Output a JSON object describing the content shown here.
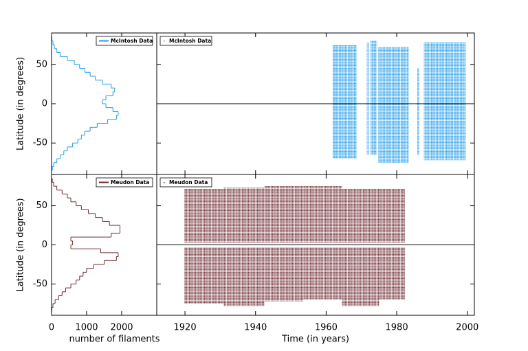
{
  "chart_data": [
    {
      "type": "histogram",
      "orientation": "horizontal",
      "ylabel": "Latitude (in degrees)",
      "ylim": [
        -90,
        90
      ],
      "yticks": [
        -50,
        0,
        50
      ],
      "xlim": [
        0,
        3000
      ],
      "legend": "upper right",
      "series": [
        {
          "name": "McIntosh Data",
          "color": "#1e9be9",
          "bins": [
            -85,
            -80,
            -75,
            -70,
            -65,
            -60,
            -55,
            -50,
            -45,
            -40,
            -35,
            -30,
            -25,
            -20,
            -15,
            -10,
            -5,
            0,
            5,
            10,
            15,
            20,
            25,
            30,
            35,
            40,
            45,
            50,
            55,
            60,
            65,
            70,
            75,
            80,
            85
          ],
          "counts": [
            20,
            60,
            150,
            250,
            350,
            450,
            600,
            750,
            850,
            950,
            1100,
            1300,
            1600,
            1850,
            1900,
            1750,
            1550,
            1450,
            1550,
            1750,
            1800,
            1700,
            1450,
            1250,
            1100,
            950,
            800,
            650,
            450,
            250,
            150,
            80,
            40,
            10
          ]
        }
      ]
    },
    {
      "type": "scatter",
      "ylim": [
        -90,
        90
      ],
      "xlim": [
        1912,
        2002
      ],
      "reference_line": 0,
      "legend": "upper left",
      "series": [
        {
          "name": "McIntosh Data",
          "color": "#1e9be9",
          "regions": [
            {
              "x": [
                1961.8,
                1968.6
              ],
              "lat": [
                -70,
                75
              ]
            },
            {
              "x": [
                1971.5,
                1972.1
              ],
              "lat": [
                -65,
                78
              ]
            },
            {
              "x": [
                1972.6,
                1974.4
              ],
              "lat": [
                -65,
                80
              ]
            },
            {
              "x": [
                1974.8,
                1983.4
              ],
              "lat": [
                -75,
                72
              ]
            },
            {
              "x": [
                1985.8,
                1986.4
              ],
              "lat": [
                -65,
                45
              ]
            },
            {
              "x": [
                1987.7,
                1999.6
              ],
              "lat": [
                -72,
                78
              ]
            }
          ]
        }
      ]
    },
    {
      "type": "histogram",
      "orientation": "horizontal",
      "ylabel": "Latitude (in degrees)",
      "xlabel": "number of filaments",
      "ylim": [
        -90,
        90
      ],
      "yticks": [
        -50,
        0,
        50
      ],
      "xlim": [
        0,
        3000
      ],
      "xticks": [
        0,
        1000,
        2000
      ],
      "legend": "upper right",
      "series": [
        {
          "name": "Meudon Data",
          "color": "#6e2a30",
          "bins": [
            -85,
            -80,
            -75,
            -70,
            -65,
            -60,
            -55,
            -50,
            -45,
            -40,
            -35,
            -30,
            -25,
            -20,
            -15,
            -10,
            -5,
            0,
            5,
            10,
            15,
            20,
            25,
            30,
            35,
            40,
            45,
            50,
            55,
            60,
            65,
            70,
            75,
            80,
            85
          ],
          "counts": [
            10,
            40,
            100,
            200,
            300,
            400,
            550,
            700,
            800,
            900,
            1000,
            1200,
            1500,
            1850,
            1900,
            1400,
            550,
            600,
            550,
            1700,
            1950,
            1950,
            1650,
            1450,
            1250,
            1050,
            850,
            700,
            550,
            450,
            300,
            150,
            60,
            20
          ]
        }
      ]
    },
    {
      "type": "scatter",
      "xlabel": "Time (in years)",
      "ylim": [
        -90,
        90
      ],
      "xlim": [
        1912,
        2002
      ],
      "xticks": [
        1920,
        1940,
        1960,
        1980,
        2000
      ],
      "reference_line": 0,
      "legend": "upper left",
      "series": [
        {
          "name": "Meudon Data",
          "color": "#6e2a30",
          "regions": [
            {
              "x": [
                1919.8,
                1931
              ],
              "lat": [
                3,
                72
              ]
            },
            {
              "x": [
                1919.8,
                1931
              ],
              "lat": [
                -75,
                -3
              ]
            },
            {
              "x": [
                1931,
                1942.5
              ],
              "lat": [
                3,
                73
              ]
            },
            {
              "x": [
                1931,
                1942.5
              ],
              "lat": [
                -78,
                -3
              ]
            },
            {
              "x": [
                1942.5,
                1953.5
              ],
              "lat": [
                3,
                75
              ]
            },
            {
              "x": [
                1942.5,
                1953.5
              ],
              "lat": [
                -72,
                -3
              ]
            },
            {
              "x": [
                1953.5,
                1964.5
              ],
              "lat": [
                3,
                75
              ]
            },
            {
              "x": [
                1953.5,
                1964.5
              ],
              "lat": [
                -70,
                -3
              ]
            },
            {
              "x": [
                1964.5,
                1975
              ],
              "lat": [
                3,
                72
              ]
            },
            {
              "x": [
                1964.5,
                1975
              ],
              "lat": [
                -78,
                -3
              ]
            },
            {
              "x": [
                1975,
                1982.3
              ],
              "lat": [
                3,
                72
              ]
            },
            {
              "x": [
                1975,
                1982.3
              ],
              "lat": [
                -70,
                -3
              ]
            }
          ]
        }
      ]
    }
  ]
}
